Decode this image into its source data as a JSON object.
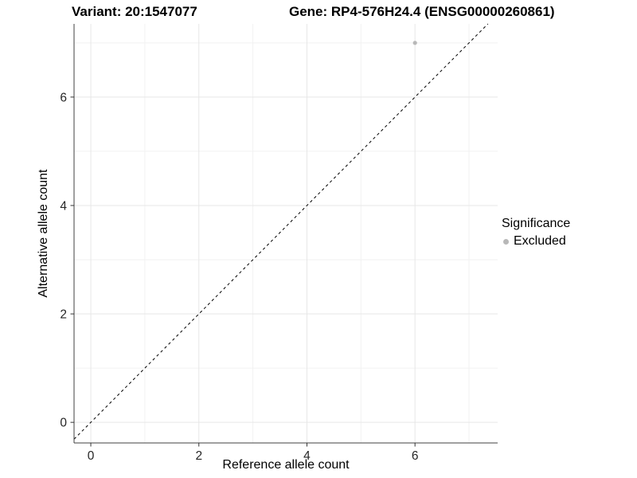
{
  "titles": {
    "left": "Variant: 20:1547077",
    "right": "Gene: RP4-576H24.4 (ENSG00000260861)"
  },
  "chart_data": {
    "type": "scatter",
    "title_left": "Variant: 20:1547077",
    "title_right": "Gene: RP4-576H24.4 (ENSG00000260861)",
    "xlabel": "Reference allele count",
    "ylabel": "Alternative allele count",
    "xlim": [
      -0.31,
      7.53
    ],
    "ylim": [
      -0.38,
      7.35
    ],
    "x_ticks": [
      0,
      2,
      4,
      6
    ],
    "y_ticks": [
      0,
      2,
      4,
      6
    ],
    "x_minor_ticks": [
      1,
      3,
      5,
      7
    ],
    "y_minor_ticks": [
      1,
      3,
      5,
      7
    ],
    "grid": true,
    "reference_line": {
      "type": "identity",
      "style": "dashed",
      "color": "#000000"
    },
    "series": [
      {
        "name": "Excluded",
        "color": "#b8b8b8",
        "points": [
          [
            6,
            7
          ]
        ]
      }
    ],
    "legend": {
      "title": "Significance",
      "position": "right",
      "items": [
        {
          "label": "Excluded",
          "color": "#b8b8b8"
        }
      ]
    },
    "style": {
      "axis_line_color": "#404040",
      "tick_color": "#333333",
      "tick_label_color": "#262626",
      "major_grid_color": "#e7e7e7",
      "minor_grid_color": "#f2f2f2",
      "background": "#ffffff"
    }
  }
}
